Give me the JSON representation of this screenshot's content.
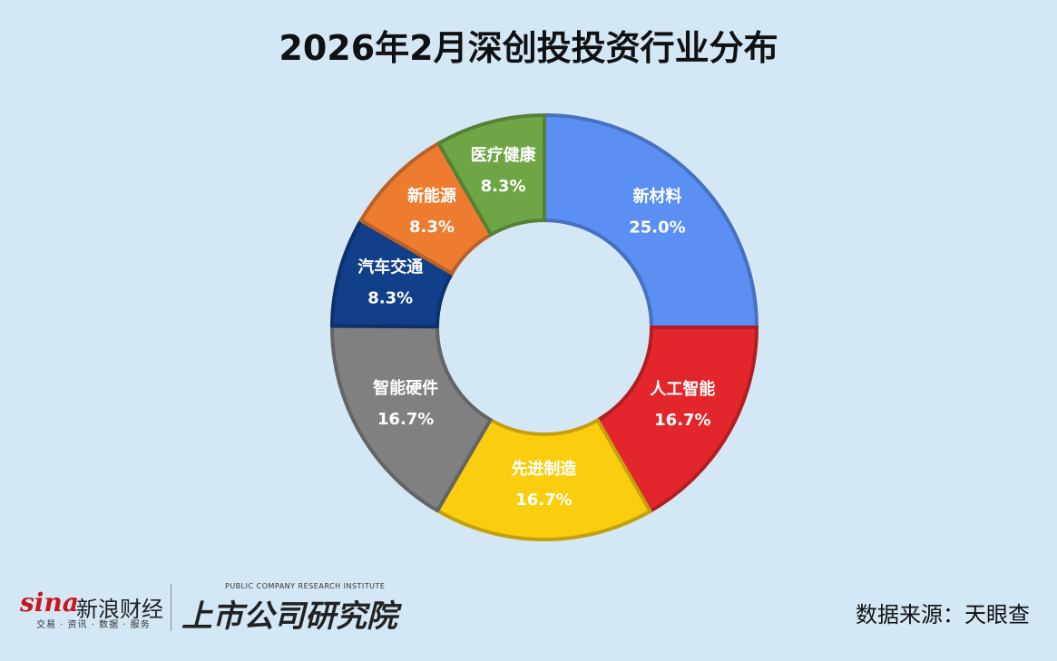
{
  "title": "2026年2月深创投投资行业分布",
  "source_text": "数据来源：天眼查",
  "logos": {
    "sina_word": "sina",
    "sina_name": "新浪财经",
    "sina_sub": "交易 · 资讯 · 数据 · 服务",
    "research_en": "PUBLIC COMPANY RESEARCH INSTITUTE",
    "research_cn": "上市公司研究院"
  },
  "chart_data": {
    "type": "pie",
    "variant": "donut",
    "title": "2026年2月深创投投资行业分布",
    "slices": [
      {
        "label": "新材料",
        "value": 25.0,
        "display": "25.0%",
        "color": "#5b8ff4"
      },
      {
        "label": "人工智能",
        "value": 16.7,
        "display": "16.7%",
        "color": "#e3262b"
      },
      {
        "label": "先进制造",
        "value": 16.7,
        "display": "16.7%",
        "color": "#fbcd0f"
      },
      {
        "label": "智能硬件",
        "value": 16.7,
        "display": "16.7%",
        "color": "#808080"
      },
      {
        "label": "汽车交通",
        "value": 8.3,
        "display": "8.3%",
        "color": "#123f8a"
      },
      {
        "label": "新能源",
        "value": 8.3,
        "display": "8.3%",
        "color": "#ed7c31"
      },
      {
        "label": "医疗健康",
        "value": 8.3,
        "display": "8.3%",
        "color": "#6ea645"
      }
    ],
    "start": "12 o'clock",
    "direction": "clockwise",
    "legend": "none"
  }
}
